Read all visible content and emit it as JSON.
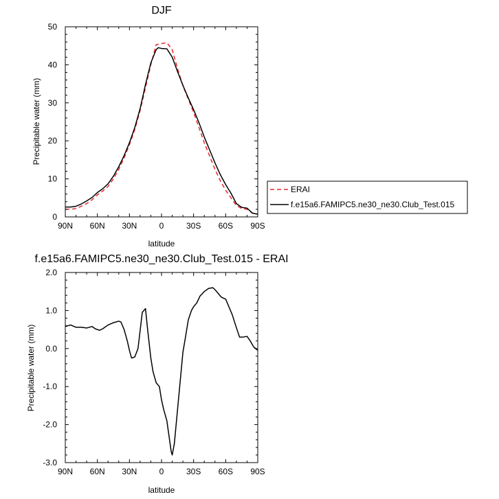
{
  "chart_data": [
    {
      "type": "line",
      "title": "DJF",
      "xlabel": "latitude",
      "ylabel": "Precipitable water (mm)",
      "xlim": [
        90,
        -90
      ],
      "ylim": [
        0,
        50
      ],
      "xticks": [
        90,
        60,
        30,
        0,
        -30,
        -60,
        -90
      ],
      "xtick_labels": [
        "90N",
        "60N",
        "30N",
        "0",
        "30S",
        "60S",
        "90S"
      ],
      "yticks": [
        0,
        10,
        20,
        30,
        40,
        50
      ],
      "ytick_labels": [
        "0",
        "10",
        "20",
        "30",
        "40",
        "50"
      ],
      "grid": false,
      "legend_position": "right",
      "series": [
        {
          "name": "ERAI",
          "color": "#e8262b",
          "dashed": true,
          "x": [
            90,
            85,
            80,
            75,
            70,
            65,
            60,
            55,
            50,
            45,
            40,
            35,
            30,
            25,
            20,
            15,
            10,
            5,
            3,
            0,
            -5,
            -10,
            -15,
            -20,
            -25,
            -30,
            -35,
            -40,
            -45,
            -50,
            -55,
            -60,
            -65,
            -70,
            -75,
            -80,
            -85,
            -90
          ],
          "y": [
            2.0,
            2.0,
            2.2,
            2.8,
            3.5,
            4.5,
            5.8,
            6.8,
            8.0,
            10.0,
            12.5,
            15.5,
            19.0,
            23.0,
            28.0,
            34.0,
            40.0,
            45.3,
            45.4,
            45.6,
            45.8,
            44.0,
            39.0,
            34.5,
            31.0,
            27.5,
            23.5,
            19.5,
            16.0,
            12.5,
            9.5,
            7.0,
            5.0,
            3.0,
            2.2,
            2.0,
            1.0,
            0.8
          ]
        },
        {
          "name": "f.e15a6.FAMIPC5.ne30_ne30.Club_Test.015",
          "color": "#000000",
          "dashed": false,
          "x": [
            90,
            85,
            80,
            75,
            70,
            65,
            60,
            55,
            50,
            45,
            40,
            35,
            30,
            25,
            20,
            15,
            10,
            5,
            3,
            0,
            -5,
            -10,
            -15,
            -20,
            -25,
            -30,
            -35,
            -40,
            -45,
            -50,
            -55,
            -60,
            -65,
            -70,
            -75,
            -80,
            -85,
            -90
          ],
          "y": [
            2.6,
            2.6,
            2.8,
            3.4,
            4.2,
            5.1,
            6.4,
            7.4,
            8.7,
            10.7,
            13.2,
            16.1,
            19.5,
            23.5,
            28.5,
            34.8,
            40.5,
            44.0,
            44.5,
            44.3,
            44.2,
            42.0,
            38.2,
            34.6,
            31.3,
            28.2,
            24.8,
            21.0,
            17.6,
            14.2,
            11.1,
            8.5,
            6.2,
            3.5,
            2.5,
            2.3,
            1.0,
            0.7
          ]
        }
      ]
    },
    {
      "type": "line",
      "title": "f.e15a6.FAMIPC5.ne30_ne30.Club_Test.015 - ERAI",
      "xlabel": "latitude",
      "ylabel": "Precipitable water (mm)",
      "xlim": [
        90,
        -90
      ],
      "ylim": [
        -3.0,
        2.0
      ],
      "xticks": [
        90,
        60,
        30,
        0,
        -30,
        -60,
        -90
      ],
      "xtick_labels": [
        "90N",
        "60N",
        "30N",
        "0",
        "30S",
        "60S",
        "90S"
      ],
      "yticks": [
        2.0,
        1.0,
        0.0,
        -1.0,
        -2.0,
        -3.0
      ],
      "ytick_labels": [
        "2.0",
        "1.0",
        "0.0",
        "-1.0",
        "-2.0",
        "-3.0"
      ],
      "grid": false,
      "series": [
        {
          "color": "#000000",
          "dashed": false,
          "x": [
            90,
            85,
            80,
            75,
            70,
            65,
            62,
            58,
            55,
            50,
            45,
            40,
            38,
            35,
            32,
            30,
            28,
            25,
            22,
            18,
            15,
            13,
            10,
            8,
            5,
            2,
            0,
            -2,
            -5,
            -7,
            -9,
            -10,
            -12,
            -15,
            -18,
            -20,
            -23,
            -25,
            -28,
            -30,
            -33,
            -36,
            -40,
            -44,
            -48,
            -50,
            -53,
            -56,
            -60,
            -63,
            -66,
            -70,
            -73,
            -76,
            -80,
            -83,
            -86,
            -90
          ],
          "y": [
            0.58,
            0.62,
            0.56,
            0.56,
            0.54,
            0.58,
            0.52,
            0.48,
            0.52,
            0.62,
            0.68,
            0.72,
            0.7,
            0.5,
            0.2,
            -0.05,
            -0.25,
            -0.22,
            0.0,
            0.95,
            1.05,
            0.5,
            -0.25,
            -0.6,
            -0.9,
            -1.0,
            -1.35,
            -1.6,
            -1.9,
            -2.3,
            -2.7,
            -2.8,
            -2.5,
            -1.6,
            -0.7,
            -0.1,
            0.4,
            0.75,
            1.0,
            1.1,
            1.2,
            1.38,
            1.5,
            1.58,
            1.6,
            1.55,
            1.45,
            1.35,
            1.3,
            1.1,
            0.9,
            0.55,
            0.3,
            0.3,
            0.32,
            0.2,
            0.05,
            -0.05
          ]
        }
      ]
    }
  ]
}
